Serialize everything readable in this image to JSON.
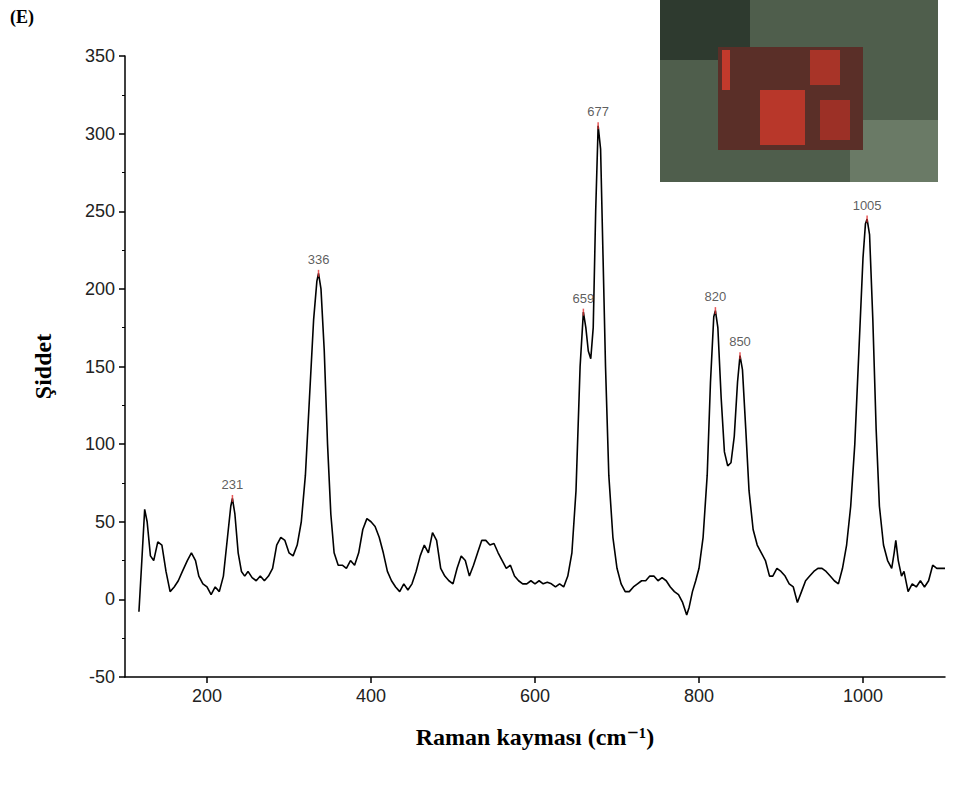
{
  "chart_data": {
    "type": "line",
    "panel_label": "(E)",
    "x_label": "Raman kayması (cm⁻¹)",
    "y_label": "Şiddet",
    "color": "#000000",
    "grid": false,
    "xlim": [
      100,
      1100
    ],
    "xticks": [
      200,
      400,
      600,
      800,
      1000
    ],
    "ylim": [
      -50,
      350
    ],
    "yticks": [
      -50,
      0,
      50,
      100,
      150,
      200,
      250,
      300,
      350
    ],
    "x": [
      117,
      120,
      124,
      127,
      131,
      135,
      140,
      145,
      150,
      155,
      160,
      165,
      170,
      176,
      181,
      186,
      190,
      195,
      200,
      205,
      210,
      215,
      220,
      225,
      229,
      231,
      234,
      238,
      242,
      246,
      250,
      255,
      260,
      265,
      270,
      275,
      280,
      285,
      290,
      295,
      300,
      305,
      310,
      315,
      320,
      325,
      330,
      334,
      336,
      339,
      343,
      347,
      351,
      355,
      360,
      365,
      370,
      375,
      380,
      385,
      390,
      395,
      400,
      405,
      410,
      415,
      420,
      425,
      430,
      435,
      440,
      445,
      450,
      455,
      460,
      465,
      470,
      475,
      480,
      485,
      490,
      495,
      500,
      505,
      510,
      515,
      520,
      525,
      530,
      535,
      540,
      545,
      550,
      555,
      560,
      565,
      570,
      575,
      580,
      585,
      590,
      595,
      600,
      605,
      610,
      615,
      620,
      625,
      630,
      635,
      640,
      645,
      650,
      655,
      659,
      662,
      665,
      668,
      671,
      674,
      677,
      680,
      683,
      686,
      690,
      695,
      700,
      705,
      710,
      715,
      720,
      725,
      730,
      735,
      740,
      745,
      750,
      755,
      760,
      765,
      770,
      775,
      780,
      785,
      788,
      792,
      796,
      800,
      805,
      810,
      814,
      818,
      820,
      823,
      827,
      831,
      835,
      839,
      843,
      847,
      850,
      853,
      857,
      861,
      866,
      871,
      876,
      881,
      886,
      890,
      895,
      900,
      905,
      910,
      915,
      920,
      925,
      930,
      935,
      940,
      945,
      950,
      955,
      960,
      965,
      970,
      975,
      980,
      985,
      990,
      995,
      1000,
      1003,
      1005,
      1008,
      1012,
      1016,
      1020,
      1025,
      1030,
      1035,
      1038,
      1040,
      1043,
      1047,
      1050,
      1055,
      1060,
      1065,
      1070,
      1075,
      1080,
      1085,
      1090,
      1095,
      1100
    ],
    "values": [
      -8,
      20,
      58,
      50,
      28,
      25,
      37,
      35,
      18,
      5,
      8,
      12,
      18,
      25,
      30,
      25,
      15,
      10,
      8,
      3,
      8,
      5,
      15,
      40,
      60,
      65,
      55,
      30,
      18,
      15,
      18,
      14,
      12,
      15,
      12,
      15,
      20,
      35,
      40,
      38,
      30,
      28,
      35,
      50,
      80,
      130,
      180,
      205,
      210,
      200,
      160,
      100,
      55,
      30,
      22,
      22,
      20,
      25,
      22,
      30,
      45,
      52,
      50,
      47,
      40,
      30,
      18,
      12,
      8,
      5,
      10,
      6,
      10,
      18,
      28,
      35,
      30,
      43,
      38,
      20,
      15,
      12,
      10,
      20,
      28,
      25,
      15,
      22,
      30,
      38,
      38,
      35,
      36,
      30,
      25,
      20,
      22,
      15,
      12,
      10,
      10,
      12,
      10,
      12,
      10,
      11,
      10,
      8,
      10,
      8,
      15,
      30,
      70,
      150,
      185,
      175,
      160,
      155,
      175,
      250,
      305,
      290,
      220,
      150,
      80,
      40,
      20,
      10,
      5,
      5,
      8,
      10,
      12,
      12,
      15,
      15,
      12,
      14,
      12,
      8,
      5,
      3,
      -2,
      -10,
      -5,
      5,
      12,
      20,
      40,
      80,
      140,
      182,
      186,
      175,
      130,
      95,
      86,
      88,
      105,
      140,
      157,
      148,
      110,
      70,
      45,
      35,
      30,
      25,
      15,
      15,
      20,
      18,
      15,
      10,
      8,
      -2,
      5,
      12,
      15,
      18,
      20,
      20,
      18,
      15,
      12,
      10,
      20,
      35,
      60,
      100,
      160,
      220,
      242,
      245,
      235,
      180,
      110,
      60,
      35,
      25,
      20,
      30,
      38,
      25,
      15,
      18,
      5,
      10,
      8,
      12,
      8,
      12,
      22,
      20,
      20,
      20
    ],
    "peaks": [
      {
        "x": 231,
        "y": 65
      },
      {
        "x": 336,
        "y": 210
      },
      {
        "x": 659,
        "y": 185
      },
      {
        "x": 677,
        "y": 305
      },
      {
        "x": 820,
        "y": 186
      },
      {
        "x": 850,
        "y": 157
      },
      {
        "x": 1005,
        "y": 245
      }
    ]
  }
}
